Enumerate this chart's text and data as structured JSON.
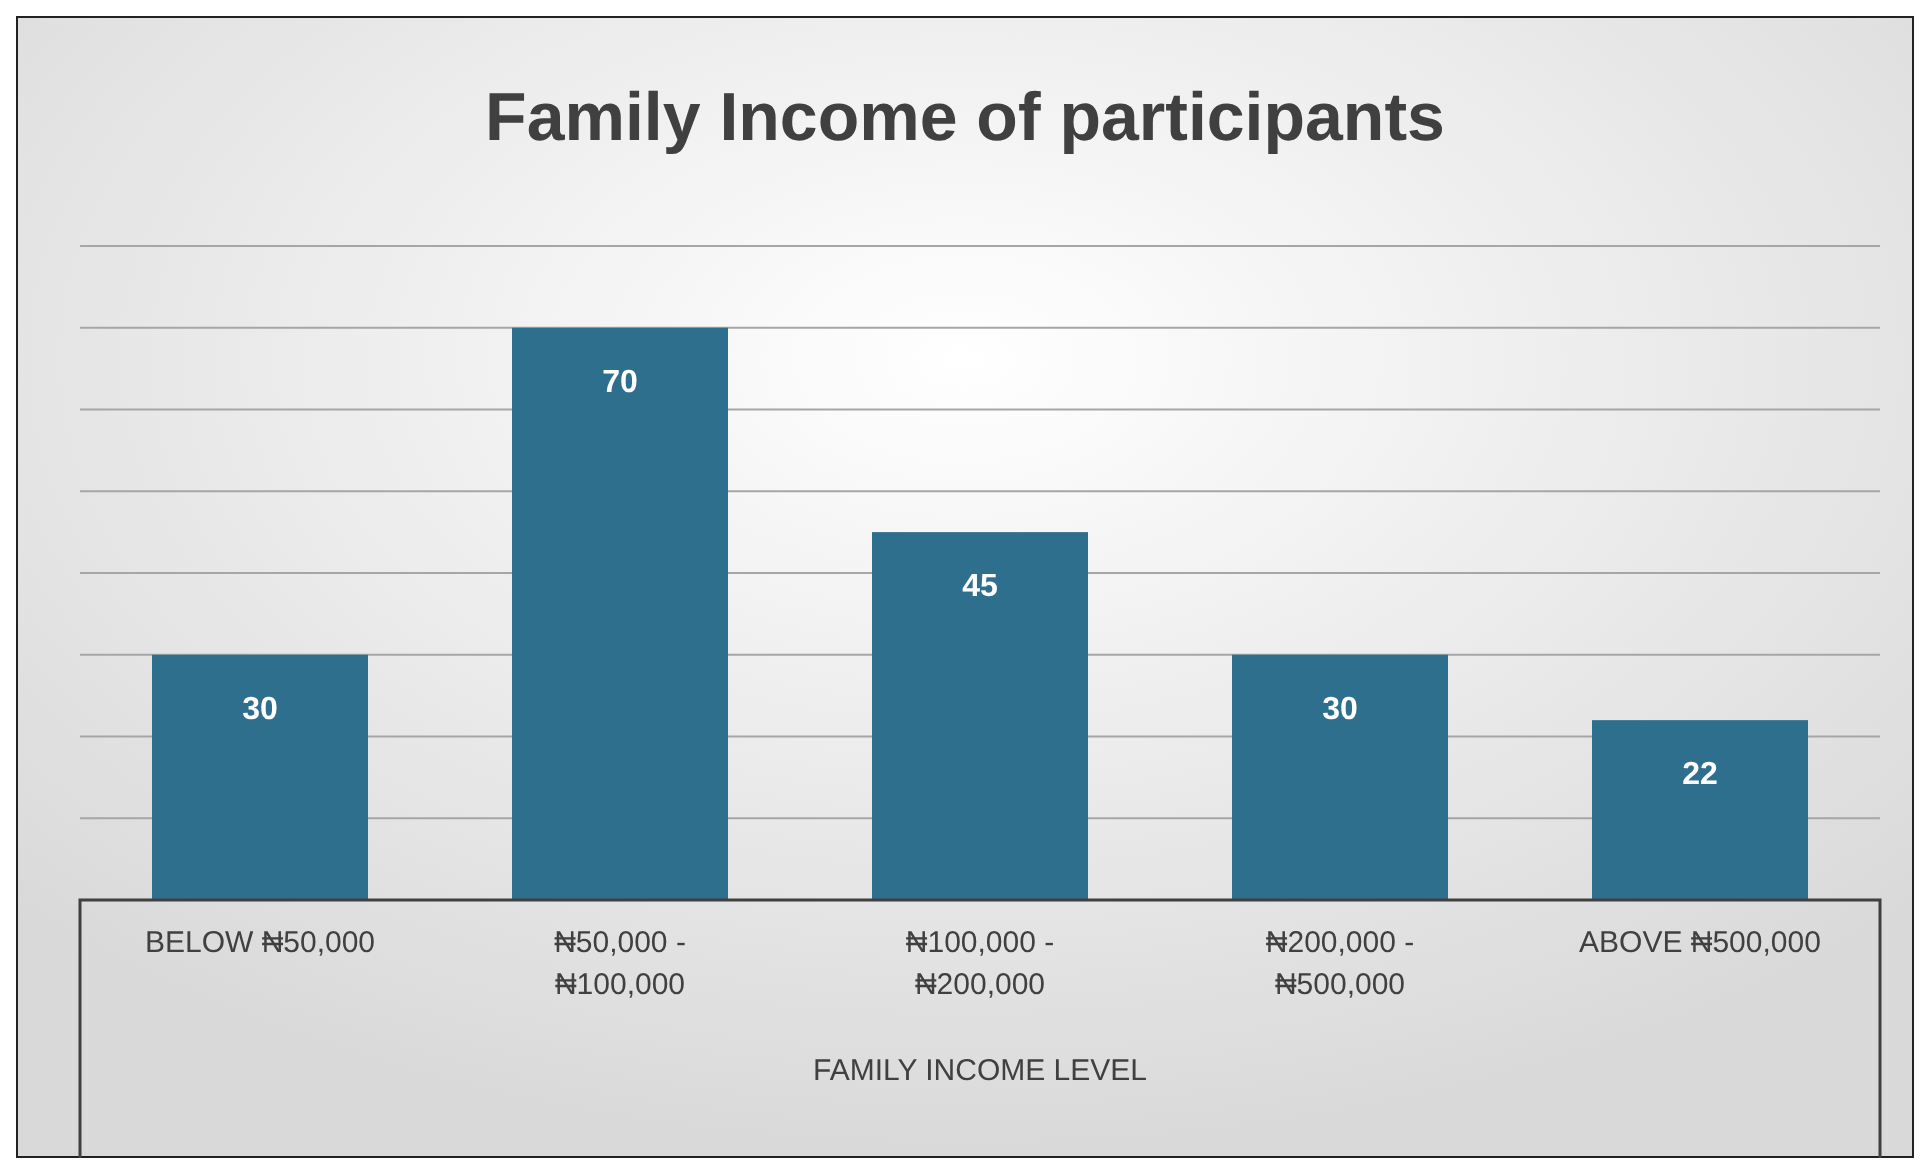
{
  "chart_data": {
    "type": "bar",
    "title": "Family Income of participants",
    "xlabel": "FAMILY INCOME LEVEL",
    "categories": [
      "BELOW ₦50,000",
      "₦50,000 - ₦100,000",
      "₦100,000 - ₦200,000",
      "₦200,000 - ₦500,000",
      "ABOVE ₦500,000"
    ],
    "values": [
      30,
      70,
      45,
      30,
      22
    ],
    "color": "#2e6f8e",
    "data_labels": true,
    "grid": "y",
    "ylim": [
      0,
      80
    ],
    "yticks": [
      {
        "value": 0,
        "label": null
      },
      {
        "value": 10,
        "label": null
      },
      {
        "value": 20,
        "label": null
      },
      {
        "value": 30,
        "label": null
      },
      {
        "value": 40,
        "label": null
      },
      {
        "value": 50,
        "label": null
      },
      {
        "value": 60,
        "label": null
      },
      {
        "value": 70,
        "label": null
      },
      {
        "value": 80,
        "label": null
      }
    ],
    "tick_labels": "x"
  }
}
